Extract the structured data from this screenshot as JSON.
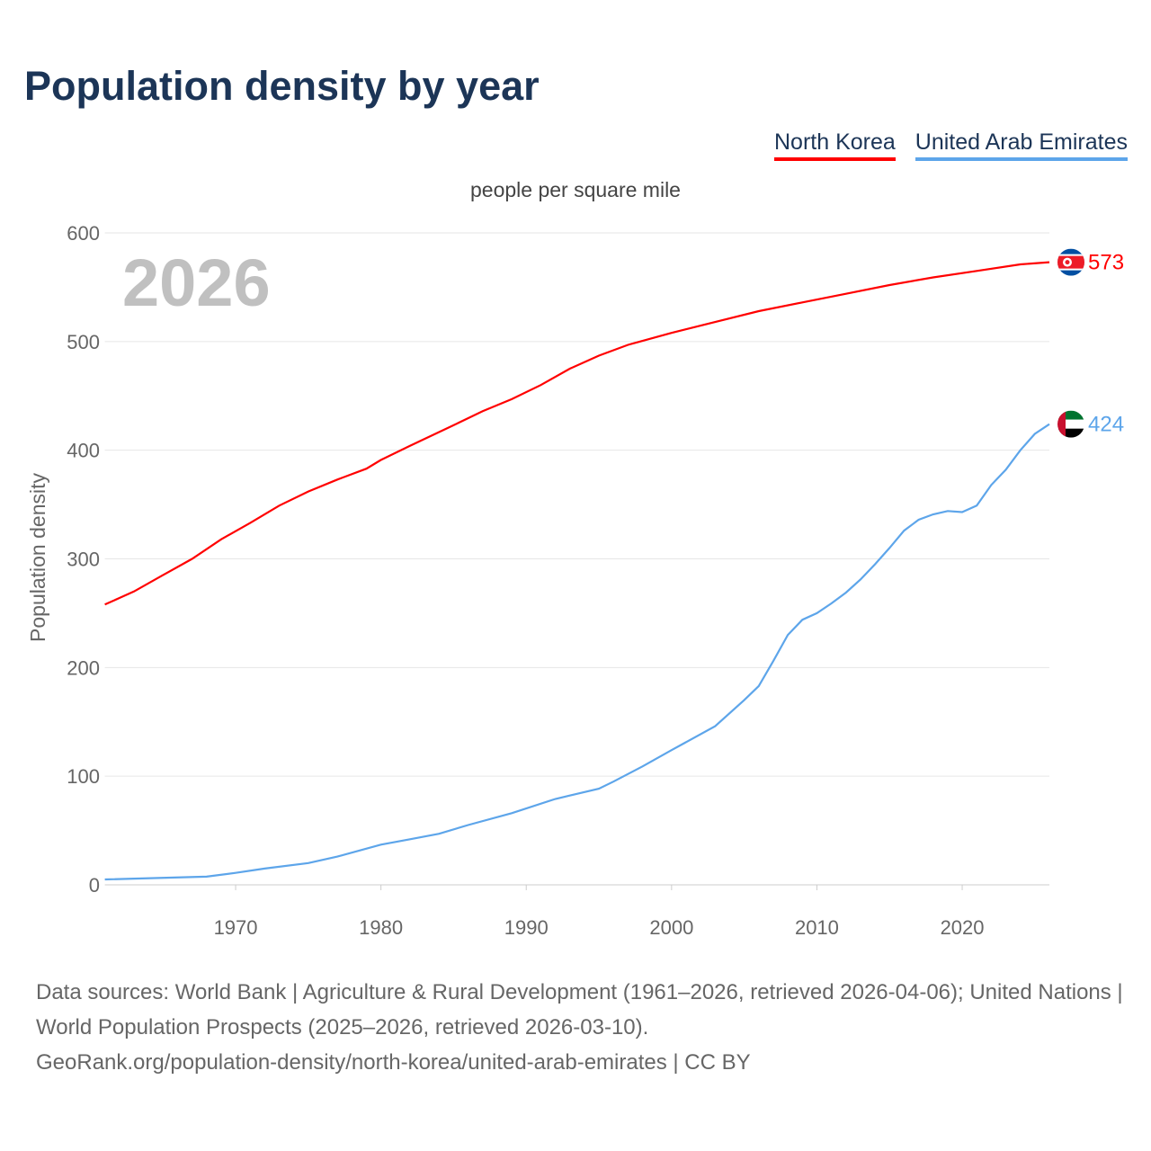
{
  "chart_data": {
    "type": "line",
    "title": "Population density by year",
    "subtitle": "people per square mile",
    "ylabel": "Population density",
    "xlabel": "",
    "year_watermark": "2026",
    "xlim": [
      1961,
      2026
    ],
    "ylim": [
      0,
      600
    ],
    "x_ticks": [
      1970,
      1980,
      1990,
      2000,
      2010,
      2020
    ],
    "y_ticks": [
      0,
      100,
      200,
      300,
      400,
      500,
      600
    ],
    "grid": true,
    "legend_position": "top-right",
    "series": [
      {
        "name": "North Korea",
        "color": "#ff0000",
        "end_label": "573",
        "flag": "north-korea-flag",
        "x": [
          1961,
          1962,
          1963,
          1965,
          1967,
          1969,
          1971,
          1973,
          1975,
          1977,
          1979,
          1980,
          1982,
          1985,
          1987,
          1989,
          1991,
          1993,
          1995,
          1997,
          2000,
          2003,
          2006,
          2009,
          2012,
          2015,
          2018,
          2021,
          2024,
          2026
        ],
        "y": [
          258,
          264,
          270,
          285,
          300,
          318,
          333,
          349,
          362,
          373,
          383,
          391,
          404,
          423,
          436,
          447,
          460,
          475,
          487,
          497,
          508,
          518,
          528,
          536,
          544,
          552,
          559,
          565,
          571,
          573
        ]
      },
      {
        "name": "United Arab Emirates",
        "color": "#5da5ea",
        "end_label": "424",
        "flag": "uae-flag",
        "x": [
          1961,
          1968,
          1970,
          1972,
          1975,
          1977,
          1980,
          1982,
          1984,
          1986,
          1989,
          1992,
          1995,
          1996,
          1998,
          2000,
          2003,
          2005,
          2006,
          2007,
          2008,
          2009,
          2010,
          2011,
          2012,
          2013,
          2014,
          2015,
          2016,
          2017,
          2018,
          2019,
          2020,
          2021,
          2022,
          2023,
          2024,
          2025,
          2026
        ],
        "y": [
          5,
          7.5,
          11,
          15,
          20,
          26,
          37,
          42,
          47,
          55,
          66,
          79,
          88.5,
          95,
          109,
          124,
          146,
          170,
          183,
          206,
          230,
          244,
          250,
          259,
          269,
          281,
          295,
          310,
          326,
          336,
          341,
          344,
          343,
          349,
          368,
          382,
          400,
          415,
          424
        ]
      }
    ]
  },
  "footer": {
    "line1": "Data sources: World Bank | Agriculture & Rural Development (1961–2026, retrieved 2026-04-06); United Nations | World Population Prospects (2025–2026, retrieved 2026-03-10).",
    "line2": "GeoRank.org/population-density/north-korea/united-arab-emirates | CC BY"
  }
}
